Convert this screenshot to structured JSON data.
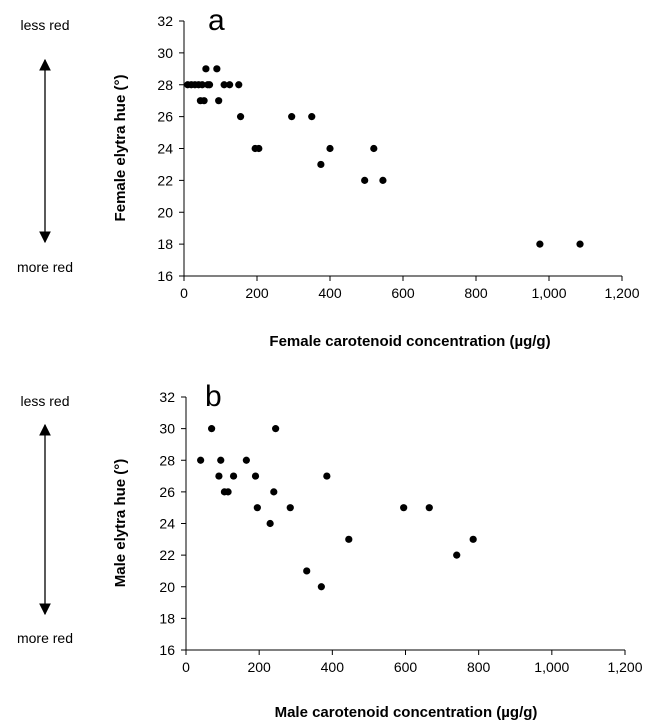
{
  "side_scale": {
    "top_label": "less red",
    "bottom_label": "more red"
  },
  "chart_data": [
    {
      "type": "scatter",
      "panel_label": "a",
      "xlabel": "Female carotenoid concentration (µg/g)",
      "ylabel": "Female elytra hue (°)",
      "xlim": [
        0,
        1200
      ],
      "ylim": [
        16,
        32
      ],
      "xticks": [
        0,
        200,
        400,
        600,
        800,
        1000,
        1200
      ],
      "xtick_labels": [
        "0",
        "200",
        "400",
        "600",
        "800",
        "1,000",
        "1,200"
      ],
      "yticks": [
        16,
        18,
        20,
        22,
        24,
        26,
        28,
        30,
        32
      ],
      "ytick_labels": [
        "16",
        "18",
        "20",
        "22",
        "24",
        "26",
        "28",
        "30",
        "32"
      ],
      "grid": false,
      "series": [
        {
          "x": [
            10,
            20,
            30,
            40,
            45,
            50,
            55,
            60,
            65,
            70,
            90,
            95,
            110,
            125,
            150,
            155,
            195,
            205,
            295,
            350,
            375,
            400,
            495,
            520,
            545,
            975,
            1085
          ],
          "y": [
            28,
            28,
            28,
            28,
            27,
            28,
            27,
            29,
            28,
            28,
            29,
            27,
            28,
            28,
            28,
            26,
            24,
            24,
            26,
            26,
            23,
            24,
            22,
            24,
            22,
            18,
            18
          ]
        }
      ]
    },
    {
      "type": "scatter",
      "panel_label": "b",
      "xlabel": "Male carotenoid concentration (µg/g)",
      "ylabel": "Male elytra hue (°)",
      "xlim": [
        0,
        1200
      ],
      "ylim": [
        16,
        32
      ],
      "xticks": [
        0,
        200,
        400,
        600,
        800,
        1000,
        1200
      ],
      "xtick_labels": [
        "0",
        "200",
        "400",
        "600",
        "800",
        "1,000",
        "1,200"
      ],
      "yticks": [
        16,
        18,
        20,
        22,
        24,
        26,
        28,
        30,
        32
      ],
      "ytick_labels": [
        "16",
        "18",
        "20",
        "22",
        "24",
        "26",
        "28",
        "30",
        "32"
      ],
      "grid": false,
      "series": [
        {
          "x": [
            40,
            70,
            90,
            95,
            105,
            115,
            130,
            165,
            190,
            195,
            230,
            240,
            245,
            285,
            330,
            370,
            385,
            445,
            595,
            665,
            740,
            785
          ],
          "y": [
            28,
            30,
            27,
            28,
            26,
            26,
            27,
            28,
            27,
            25,
            24,
            26,
            30,
            25,
            21,
            20,
            27,
            23,
            25,
            25,
            22,
            23
          ]
        }
      ]
    }
  ]
}
